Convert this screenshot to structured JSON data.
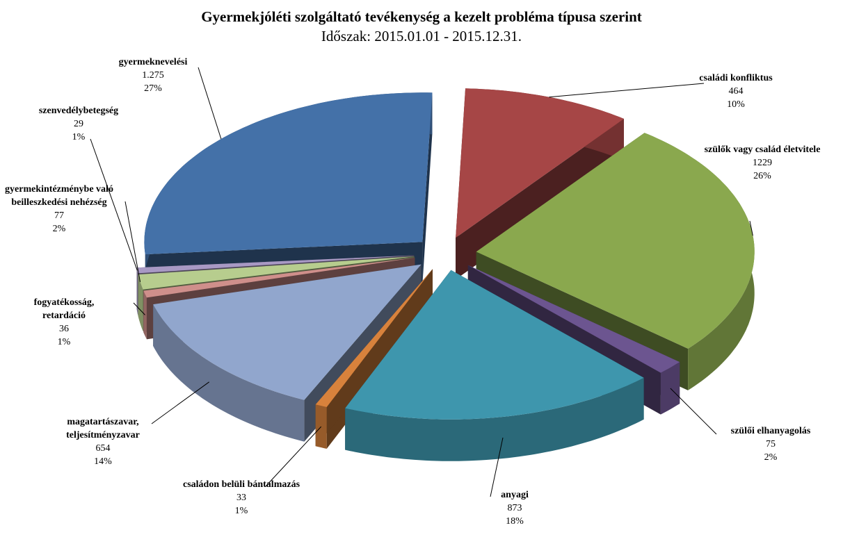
{
  "chart_data": {
    "type": "pie3d",
    "title": "Gyermekjóléti szolgáltató tevékenység a kezelt probléma típusa szerint",
    "subtitle": "Időszak: 2015.01.01 - 2015.12.31.",
    "categories": [
      "családi konfliktus",
      "szülők vagy család életvitele",
      "szülői elhanyagolás",
      "anyagi",
      "családon belüli bántalmazás",
      "magatartászavar, teljesítményzavar",
      "fogyatékosság, retardáció",
      "gyermekintézménybe való beilleszkedési nehézség",
      "szenvedélybetegség",
      "gyermeknevelési"
    ],
    "values": [
      464,
      1229,
      75,
      873,
      33,
      654,
      36,
      77,
      29,
      1275
    ],
    "value_labels": [
      "464",
      "1229",
      "75",
      "873",
      "33",
      "654",
      "36",
      "77",
      "29",
      "1.275"
    ],
    "percents": [
      {
        "value": 10,
        "label": "10%"
      },
      {
        "value": 26,
        "label": "26%"
      },
      {
        "value": 2,
        "label": "2%"
      },
      {
        "value": 18,
        "label": "18%"
      },
      {
        "value": 1,
        "label": "1%"
      },
      {
        "value": 14,
        "label": "14%"
      },
      {
        "value": 1,
        "label": "1%"
      },
      {
        "value": 2,
        "label": "2%"
      },
      {
        "value": 1,
        "label": "1%"
      },
      {
        "value": 27,
        "label": "27%"
      }
    ],
    "colors": [
      "#a64646",
      "#8aa84e",
      "#6c5590",
      "#3e96ad",
      "#d8823c",
      "#91a6cd",
      "#cf8f8b",
      "#b7cd8e",
      "#a899c4",
      "#4471a8"
    ]
  }
}
